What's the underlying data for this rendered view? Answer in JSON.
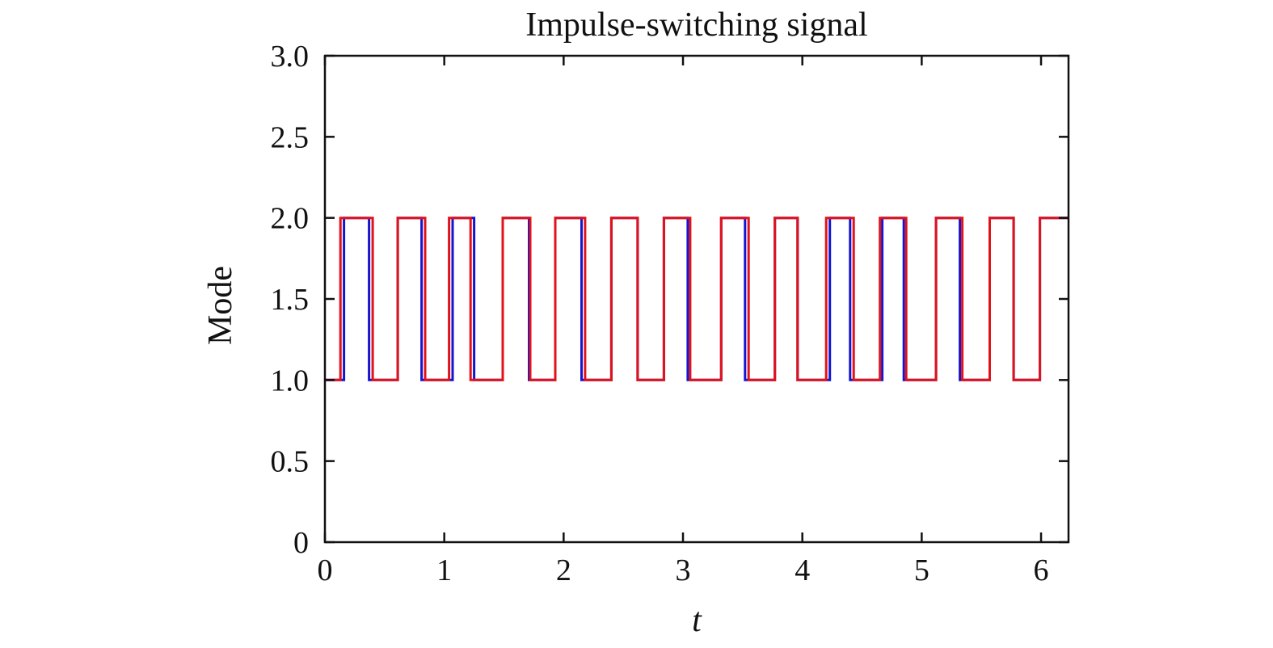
{
  "chart_data": {
    "type": "line",
    "title": "Impulse-switching signal",
    "xlabel": "t",
    "ylabel": "Mode",
    "xlim": [
      0,
      6.23
    ],
    "ylim": [
      0,
      3.0
    ],
    "xticks": [
      0,
      1,
      2,
      3,
      4,
      5,
      6
    ],
    "xtick_labels": [
      "0",
      "1",
      "2",
      "3",
      "4",
      "5",
      "6"
    ],
    "yticks": [
      0,
      0.5,
      1.0,
      1.5,
      2.0,
      2.5,
      3.0
    ],
    "ytick_labels": [
      "0",
      "0.5",
      "1.0",
      "1.5",
      "2.0",
      "2.5",
      "3.0"
    ],
    "grid": false,
    "step": true,
    "series": [
      {
        "color": "#1515d0",
        "x": [
          0,
          0.16,
          0.37,
          0.61,
          0.81,
          1.07,
          1.25,
          1.49,
          1.71,
          1.93,
          2.15,
          2.4,
          2.62,
          2.84,
          3.04,
          3.32,
          3.52,
          3.77,
          3.96,
          4.23,
          4.4,
          4.67,
          4.85,
          5.12,
          5.32,
          5.57,
          5.77,
          5.99,
          6.23
        ],
        "y": [
          1,
          2,
          1,
          2,
          1,
          2,
          1,
          2,
          1,
          2,
          1,
          2,
          1,
          2,
          1,
          2,
          1,
          2,
          1,
          2,
          1,
          2,
          1,
          2,
          1,
          2,
          1,
          2,
          2
        ]
      },
      {
        "color": "#e0121a",
        "x": [
          0,
          0.13,
          0.4,
          0.61,
          0.84,
          1.04,
          1.22,
          1.49,
          1.72,
          1.93,
          2.18,
          2.4,
          2.62,
          2.84,
          3.06,
          3.32,
          3.55,
          3.77,
          3.96,
          4.2,
          4.43,
          4.65,
          4.87,
          5.12,
          5.34,
          5.57,
          5.77,
          5.99,
          6.23
        ],
        "y": [
          1,
          2,
          1,
          2,
          1,
          2,
          1,
          2,
          1,
          2,
          1,
          2,
          1,
          2,
          1,
          2,
          1,
          2,
          1,
          2,
          1,
          2,
          1,
          2,
          1,
          2,
          1,
          2,
          2
        ]
      }
    ]
  }
}
